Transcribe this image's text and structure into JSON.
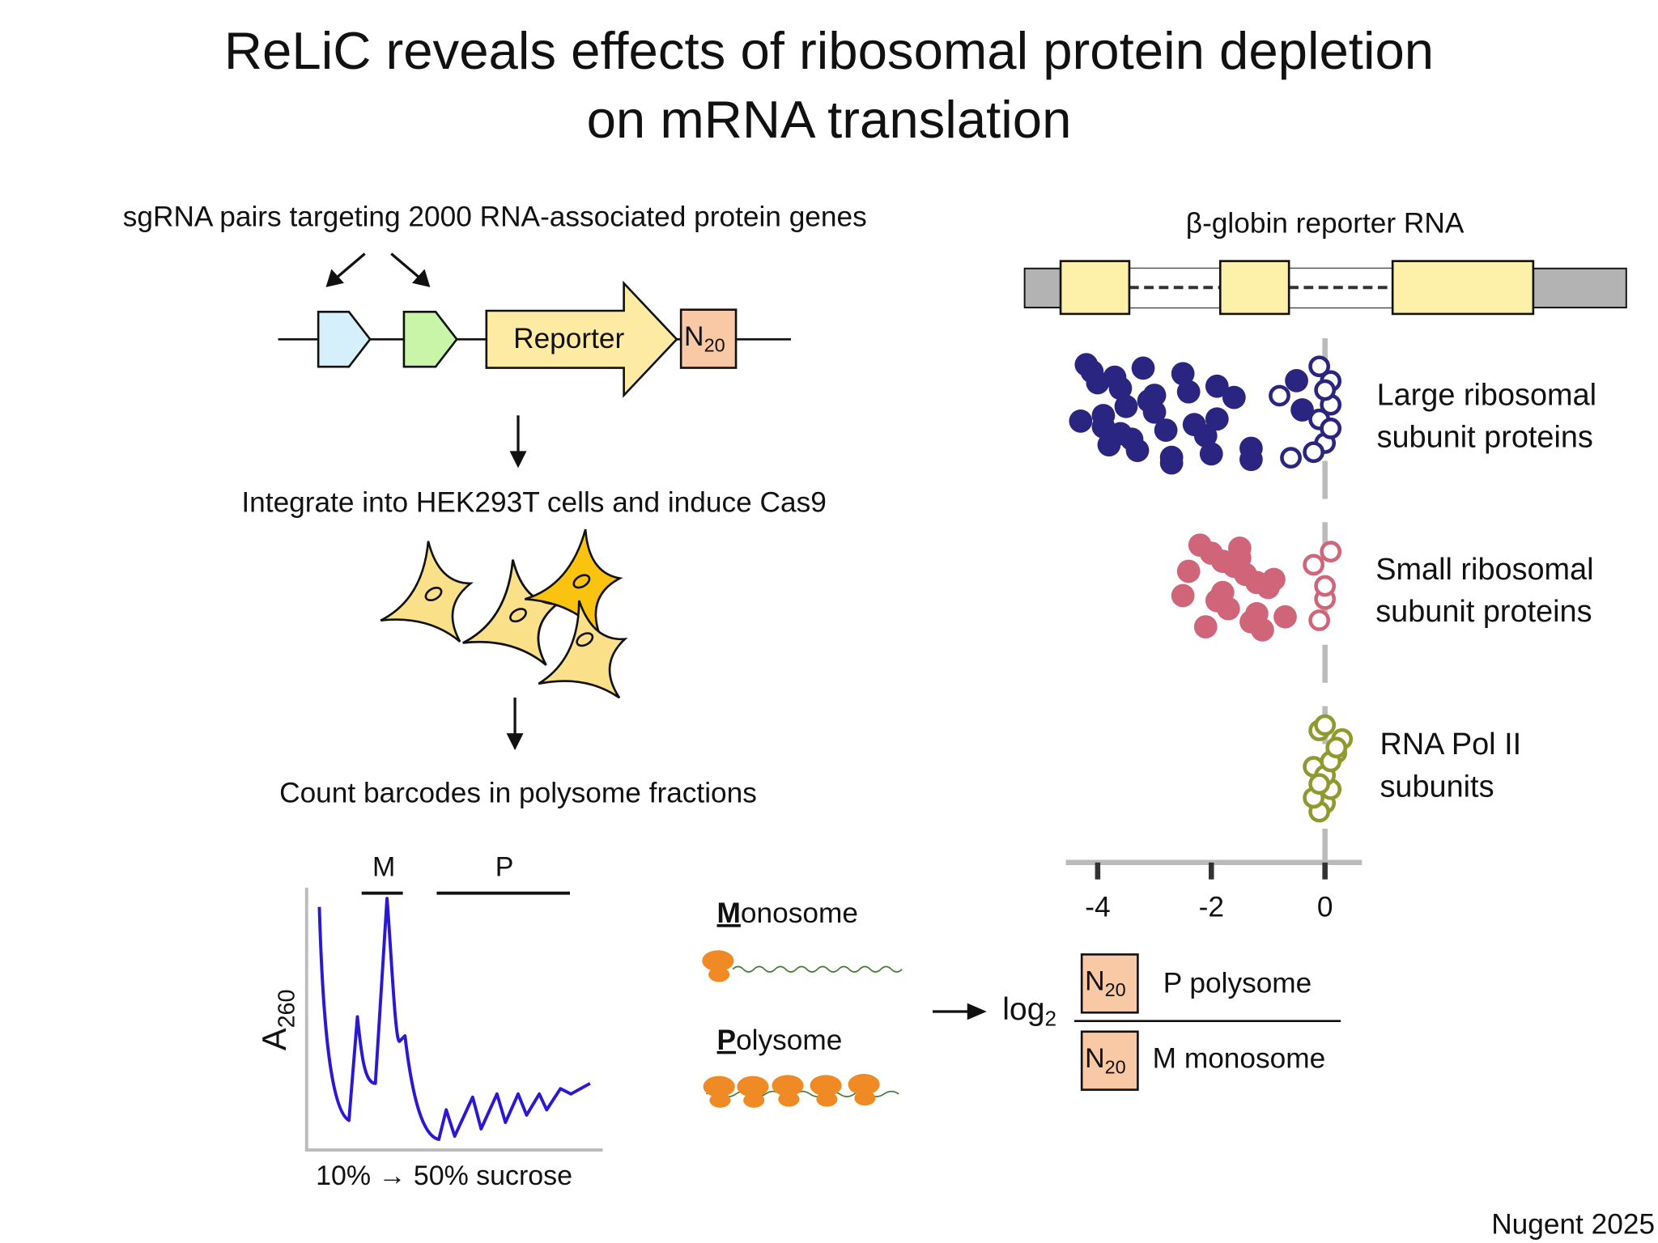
{
  "title_lines": [
    "ReLiC reveals effects of ribosomal protein depletion",
    "on mRNA translation"
  ],
  "workflow": {
    "step1": "sgRNA pairs targeting 2000 RNA-associated protein genes",
    "reporter": "Reporter",
    "barcode": "N",
    "barcode_sub": "20",
    "step2": "Integrate into HEK293T cells and induce Cas9",
    "step3": "Count barcodes in polysome fractions"
  },
  "profile": {
    "y_label": "A",
    "y_label_sub": "260",
    "x_label": "10% → 50% sucrose",
    "m_label": "M",
    "p_label": "P"
  },
  "fractions": {
    "monosome_initial": "M",
    "monosome_rest": "onosome",
    "polysome_initial": "P",
    "polysome_rest": "olysome"
  },
  "ratio": {
    "log": "log",
    "log_sub": "2",
    "numerator_barcode": "N",
    "numerator_barcode_sub": "20",
    "numerator": "P polysome",
    "denominator_barcode": "N",
    "denominator_barcode_sub": "20",
    "denominator": "M monosome"
  },
  "reporter_rna": "β-globin reporter RNA",
  "chart_data": {
    "type": "strip",
    "xlim": [
      -4.56,
      0.65
    ],
    "xticks": [
      -4,
      -2,
      0
    ],
    "series": [
      {
        "label_lines": [
          "Large ribosomal",
          "subunit proteins"
        ],
        "color": "#2a2580",
        "filled": [
          -4.2,
          -3.9,
          -3.6,
          -3.3,
          -3.0,
          -2.5,
          -2.1,
          -1.6,
          -1.3,
          -4.3,
          -4.0,
          -3.8,
          -3.5,
          -3.2,
          -2.8,
          -2.4,
          -2.0,
          -3.9,
          -3.7,
          -3.4,
          -3.1,
          -2.7,
          -2.3,
          -1.9,
          -1.3,
          -0.4,
          -4.1,
          -3.6,
          -3.0,
          -2.7,
          -1.9,
          -0.5
        ],
        "open": [
          -0.8,
          -0.6,
          -0.1,
          0.1,
          0.0,
          0.1,
          -0.1,
          0.1,
          0.0,
          -0.2
        ]
      },
      {
        "label_lines": [
          "Small ribosomal",
          "subunit proteins"
        ],
        "color": "#d0657a",
        "filled": [
          -2.4,
          -2.1,
          -1.8,
          -1.5,
          -1.2,
          -0.9,
          -2.2,
          -1.9,
          -1.6,
          -1.3,
          -1.0,
          -2.0,
          -1.7,
          -1.4,
          -1.1,
          -2.5,
          -1.8,
          -0.7,
          -1.2,
          -1.5
        ],
        "open": [
          0.0,
          -0.2,
          -0.1,
          0.0,
          0.1
        ]
      },
      {
        "label_lines": [
          "RNA Pol II",
          "subunits"
        ],
        "color": "#8f9a2e",
        "filled": [],
        "open": [
          0.0,
          -0.2,
          -0.1,
          0.1,
          0.2,
          -0.1,
          0.0,
          0.3,
          -0.2,
          0.1,
          0.0,
          -0.1,
          0.2
        ]
      }
    ]
  },
  "credit": "Nugent 2025"
}
